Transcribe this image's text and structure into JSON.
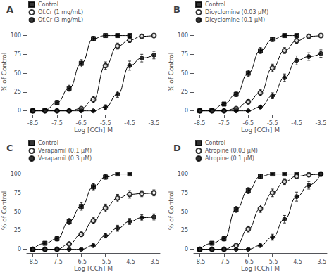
{
  "chart_data": [
    {
      "type": "line",
      "title": "A",
      "xlabel": "Log [CCh] M",
      "ylabel": "% of Control",
      "xlim": [
        -8.75,
        -3.25
      ],
      "ylim": [
        -5,
        108
      ],
      "xticks": [
        -8.5,
        -7.5,
        -6.5,
        -5.5,
        -4.5,
        -3.5
      ],
      "yticks": [
        0,
        25,
        50,
        75,
        100
      ],
      "grid": false,
      "legend": "upper left",
      "series": [
        {
          "name": "Control",
          "marker": "square",
          "color": "#000000",
          "x": [
            -8.5,
            -8.0,
            -7.5,
            -7.0,
            -6.5,
            -6.0,
            -5.5,
            -5.0,
            -4.5
          ],
          "values": [
            0,
            1,
            11,
            30,
            63,
            96,
            100,
            100,
            100
          ],
          "yerr": [
            0.5,
            1,
            3,
            4,
            5,
            3,
            2,
            1,
            1
          ]
        },
        {
          "name": "Of.Cr (1 mg/mL)",
          "marker": "circle_open",
          "color": "#000000",
          "x": [
            -8.5,
            -8.0,
            -7.5,
            -7.0,
            -6.5,
            -6.0,
            -5.5,
            -5.0,
            -4.5,
            -4.0,
            -3.5
          ],
          "values": [
            0,
            0,
            0,
            0,
            3,
            15,
            60,
            86,
            94,
            99,
            100
          ],
          "yerr": [
            0.5,
            0.5,
            1,
            1,
            2,
            4,
            5,
            4,
            3,
            2,
            1
          ]
        },
        {
          "name": "Of.Cr (3 mg/mL)",
          "marker": "circle",
          "color": "#000000",
          "x": [
            -8.5,
            -8.0,
            -7.5,
            -7.0,
            -6.5,
            -6.0,
            -5.5,
            -5.0,
            -4.5,
            -4.0,
            -3.5
          ],
          "values": [
            0,
            0,
            0,
            0,
            0,
            0,
            5,
            22,
            60,
            70,
            74
          ],
          "yerr": [
            0.5,
            0.5,
            0.5,
            0.5,
            1,
            1,
            3,
            4,
            6,
            5,
            5
          ]
        }
      ]
    },
    {
      "type": "line",
      "title": "B",
      "xlabel": "Log [CCh] M",
      "ylabel": "% of Control",
      "xlim": [
        -8.75,
        -3.25
      ],
      "ylim": [
        -5,
        108
      ],
      "xticks": [
        -8.5,
        -7.5,
        -6.5,
        -5.5,
        -4.5,
        -3.5
      ],
      "yticks": [
        0,
        25,
        50,
        75,
        100
      ],
      "grid": false,
      "legend": "upper left",
      "series": [
        {
          "name": "Control",
          "marker": "square",
          "color": "#000000",
          "x": [
            -8.5,
            -8.0,
            -7.5,
            -7.0,
            -6.5,
            -6.0,
            -5.5,
            -5.0,
            -4.5
          ],
          "values": [
            0,
            1,
            9,
            22,
            50,
            80,
            95,
            100,
            100
          ],
          "yerr": [
            0.5,
            1,
            2,
            3,
            4,
            4,
            3,
            1,
            1
          ]
        },
        {
          "name": "Dicyclomine (0.03 μM)",
          "marker": "circle_open",
          "color": "#000000",
          "x": [
            -8.5,
            -8.0,
            -7.5,
            -7.0,
            -6.5,
            -6.0,
            -5.5,
            -5.0,
            -4.5,
            -4.0,
            -3.5
          ],
          "values": [
            0,
            0,
            0,
            3,
            12,
            24,
            57,
            80,
            93,
            99,
            100
          ],
          "yerr": [
            0.5,
            0.5,
            1,
            2,
            3,
            4,
            5,
            4,
            3,
            2,
            1
          ]
        },
        {
          "name": "Dicyclomine (0.1 μM)",
          "marker": "circle",
          "color": "#000000",
          "x": [
            -8.5,
            -8.0,
            -7.5,
            -7.0,
            -6.5,
            -6.0,
            -5.5,
            -5.0,
            -4.5,
            -4.0,
            -3.5
          ],
          "values": [
            0,
            0,
            0,
            0,
            0,
            5,
            20,
            44,
            67,
            72,
            76
          ],
          "yerr": [
            0.5,
            0.5,
            0.5,
            0.5,
            1,
            2,
            4,
            5,
            6,
            5,
            5
          ]
        }
      ]
    },
    {
      "type": "line",
      "title": "C",
      "xlabel": "Log [CCh] M",
      "ylabel": "% of Control",
      "xlim": [
        -8.75,
        -3.25
      ],
      "ylim": [
        -5,
        108
      ],
      "xticks": [
        -8.5,
        -7.5,
        -6.5,
        -5.5,
        -4.5,
        -3.5
      ],
      "yticks": [
        0,
        25,
        50,
        75,
        100
      ],
      "grid": false,
      "legend": "upper left",
      "series": [
        {
          "name": "Control",
          "marker": "square",
          "color": "#000000",
          "x": [
            -8.5,
            -8.0,
            -7.5,
            -7.0,
            -6.5,
            -6.0,
            -5.5,
            -5.0,
            -4.5
          ],
          "values": [
            0,
            8,
            14,
            37,
            57,
            83,
            96,
            100,
            100
          ],
          "yerr": [
            1,
            2,
            3,
            4,
            5,
            4,
            3,
            1,
            1
          ]
        },
        {
          "name": "Verapamil (0.1 μM)",
          "marker": "circle_open",
          "color": "#000000",
          "x": [
            -8.5,
            -8.0,
            -7.5,
            -7.0,
            -6.5,
            -6.0,
            -5.5,
            -5.0,
            -4.5,
            -4.0,
            -3.5
          ],
          "values": [
            0,
            0,
            0,
            7,
            20,
            38,
            55,
            68,
            73,
            74,
            75
          ],
          "yerr": [
            0.5,
            0.5,
            1,
            2,
            3,
            4,
            5,
            5,
            5,
            4,
            4
          ]
        },
        {
          "name": "Verapamil (0.3 μM)",
          "marker": "circle",
          "color": "#000000",
          "x": [
            -8.5,
            -8.0,
            -7.5,
            -7.0,
            -6.5,
            -6.0,
            -5.5,
            -5.0,
            -4.5,
            -4.0,
            -3.5
          ],
          "values": [
            0,
            0,
            0,
            0,
            0,
            5,
            18,
            28,
            37,
            42,
            43
          ],
          "yerr": [
            0.5,
            0.5,
            0.5,
            0.5,
            1,
            2,
            3,
            4,
            4,
            4,
            4
          ]
        }
      ]
    },
    {
      "type": "line",
      "title": "D",
      "xlabel": "Log [CCh] M",
      "ylabel": "% of Control",
      "xlim": [
        -8.75,
        -3.25
      ],
      "ylim": [
        -5,
        108
      ],
      "xticks": [
        -8.5,
        -7.5,
        -6.5,
        -5.5,
        -4.5,
        -3.5
      ],
      "yticks": [
        0,
        25,
        50,
        75,
        100
      ],
      "grid": false,
      "legend": "upper left",
      "series": [
        {
          "name": "Control",
          "marker": "square",
          "color": "#000000",
          "x": [
            -8.5,
            -8.0,
            -7.5,
            -7.0,
            -6.5,
            -6.0,
            -5.5,
            -5.0,
            -4.5
          ],
          "values": [
            0,
            8,
            14,
            53,
            78,
            97,
            100,
            100,
            100
          ],
          "yerr": [
            1,
            2,
            3,
            4,
            4,
            3,
            1,
            1,
            1
          ]
        },
        {
          "name": "Atropine (0.03 μM)",
          "marker": "circle_open",
          "color": "#000000",
          "x": [
            -8.5,
            -8.0,
            -7.5,
            -7.0,
            -6.5,
            -6.0,
            -5.5,
            -5.0,
            -4.5,
            -4.0,
            -3.5
          ],
          "values": [
            0,
            0,
            0,
            5,
            27,
            54,
            75,
            90,
            97,
            99,
            100
          ],
          "yerr": [
            0.5,
            0.5,
            1,
            2,
            4,
            5,
            5,
            4,
            3,
            2,
            1
          ]
        },
        {
          "name": "Atropine (0.1 μM)",
          "marker": "circle",
          "color": "#000000",
          "x": [
            -8.5,
            -8.0,
            -7.5,
            -7.0,
            -6.5,
            -6.0,
            -5.5,
            -5.0,
            -4.5,
            -4.0,
            -3.5
          ],
          "values": [
            0,
            0,
            0,
            0,
            0,
            5,
            16,
            40,
            70,
            85,
            100
          ],
          "yerr": [
            0.5,
            0.5,
            0.5,
            0.5,
            1,
            2,
            4,
            5,
            6,
            5,
            3
          ]
        }
      ]
    }
  ]
}
